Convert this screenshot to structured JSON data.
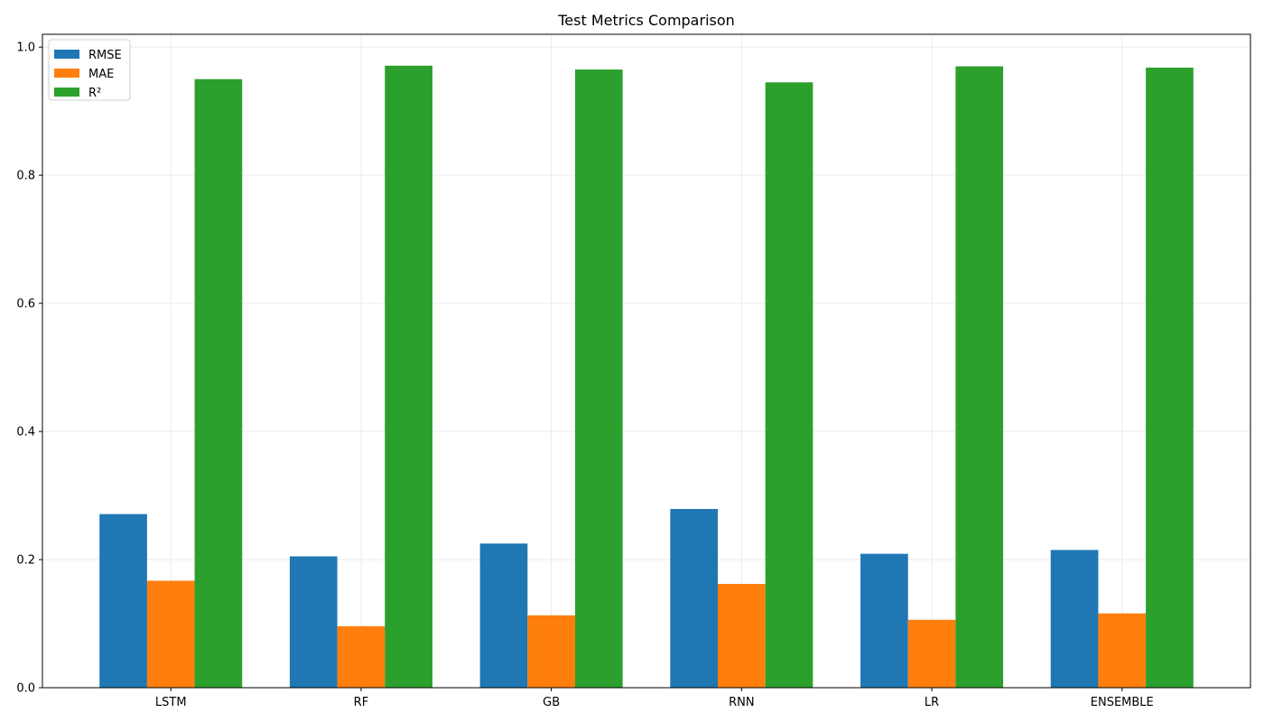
{
  "chart_data": {
    "type": "bar",
    "title": "Test Metrics Comparison",
    "xlabel": "",
    "ylabel": "",
    "categories": [
      "LSTM",
      "RF",
      "GB",
      "RNN",
      "LR",
      "ENSEMBLE"
    ],
    "series": [
      {
        "name": "RMSE",
        "color": "#1f77b4",
        "values": [
          0.271,
          0.205,
          0.225,
          0.279,
          0.209,
          0.215
        ]
      },
      {
        "name": "MAE",
        "color": "#ff7f0e",
        "values": [
          0.167,
          0.096,
          0.113,
          0.162,
          0.106,
          0.116
        ]
      },
      {
        "name": "R²",
        "color": "#2ca02c",
        "values": [
          0.95,
          0.971,
          0.965,
          0.945,
          0.97,
          0.968
        ]
      }
    ],
    "ylim": [
      0,
      1.02
    ],
    "yticks": [
      0.0,
      0.2,
      0.4,
      0.6,
      0.8,
      1.0
    ],
    "ytick_labels": [
      "0.0",
      "0.2",
      "0.4",
      "0.6",
      "0.8",
      "1.0"
    ],
    "grid": true,
    "legend_position": "top-left"
  }
}
